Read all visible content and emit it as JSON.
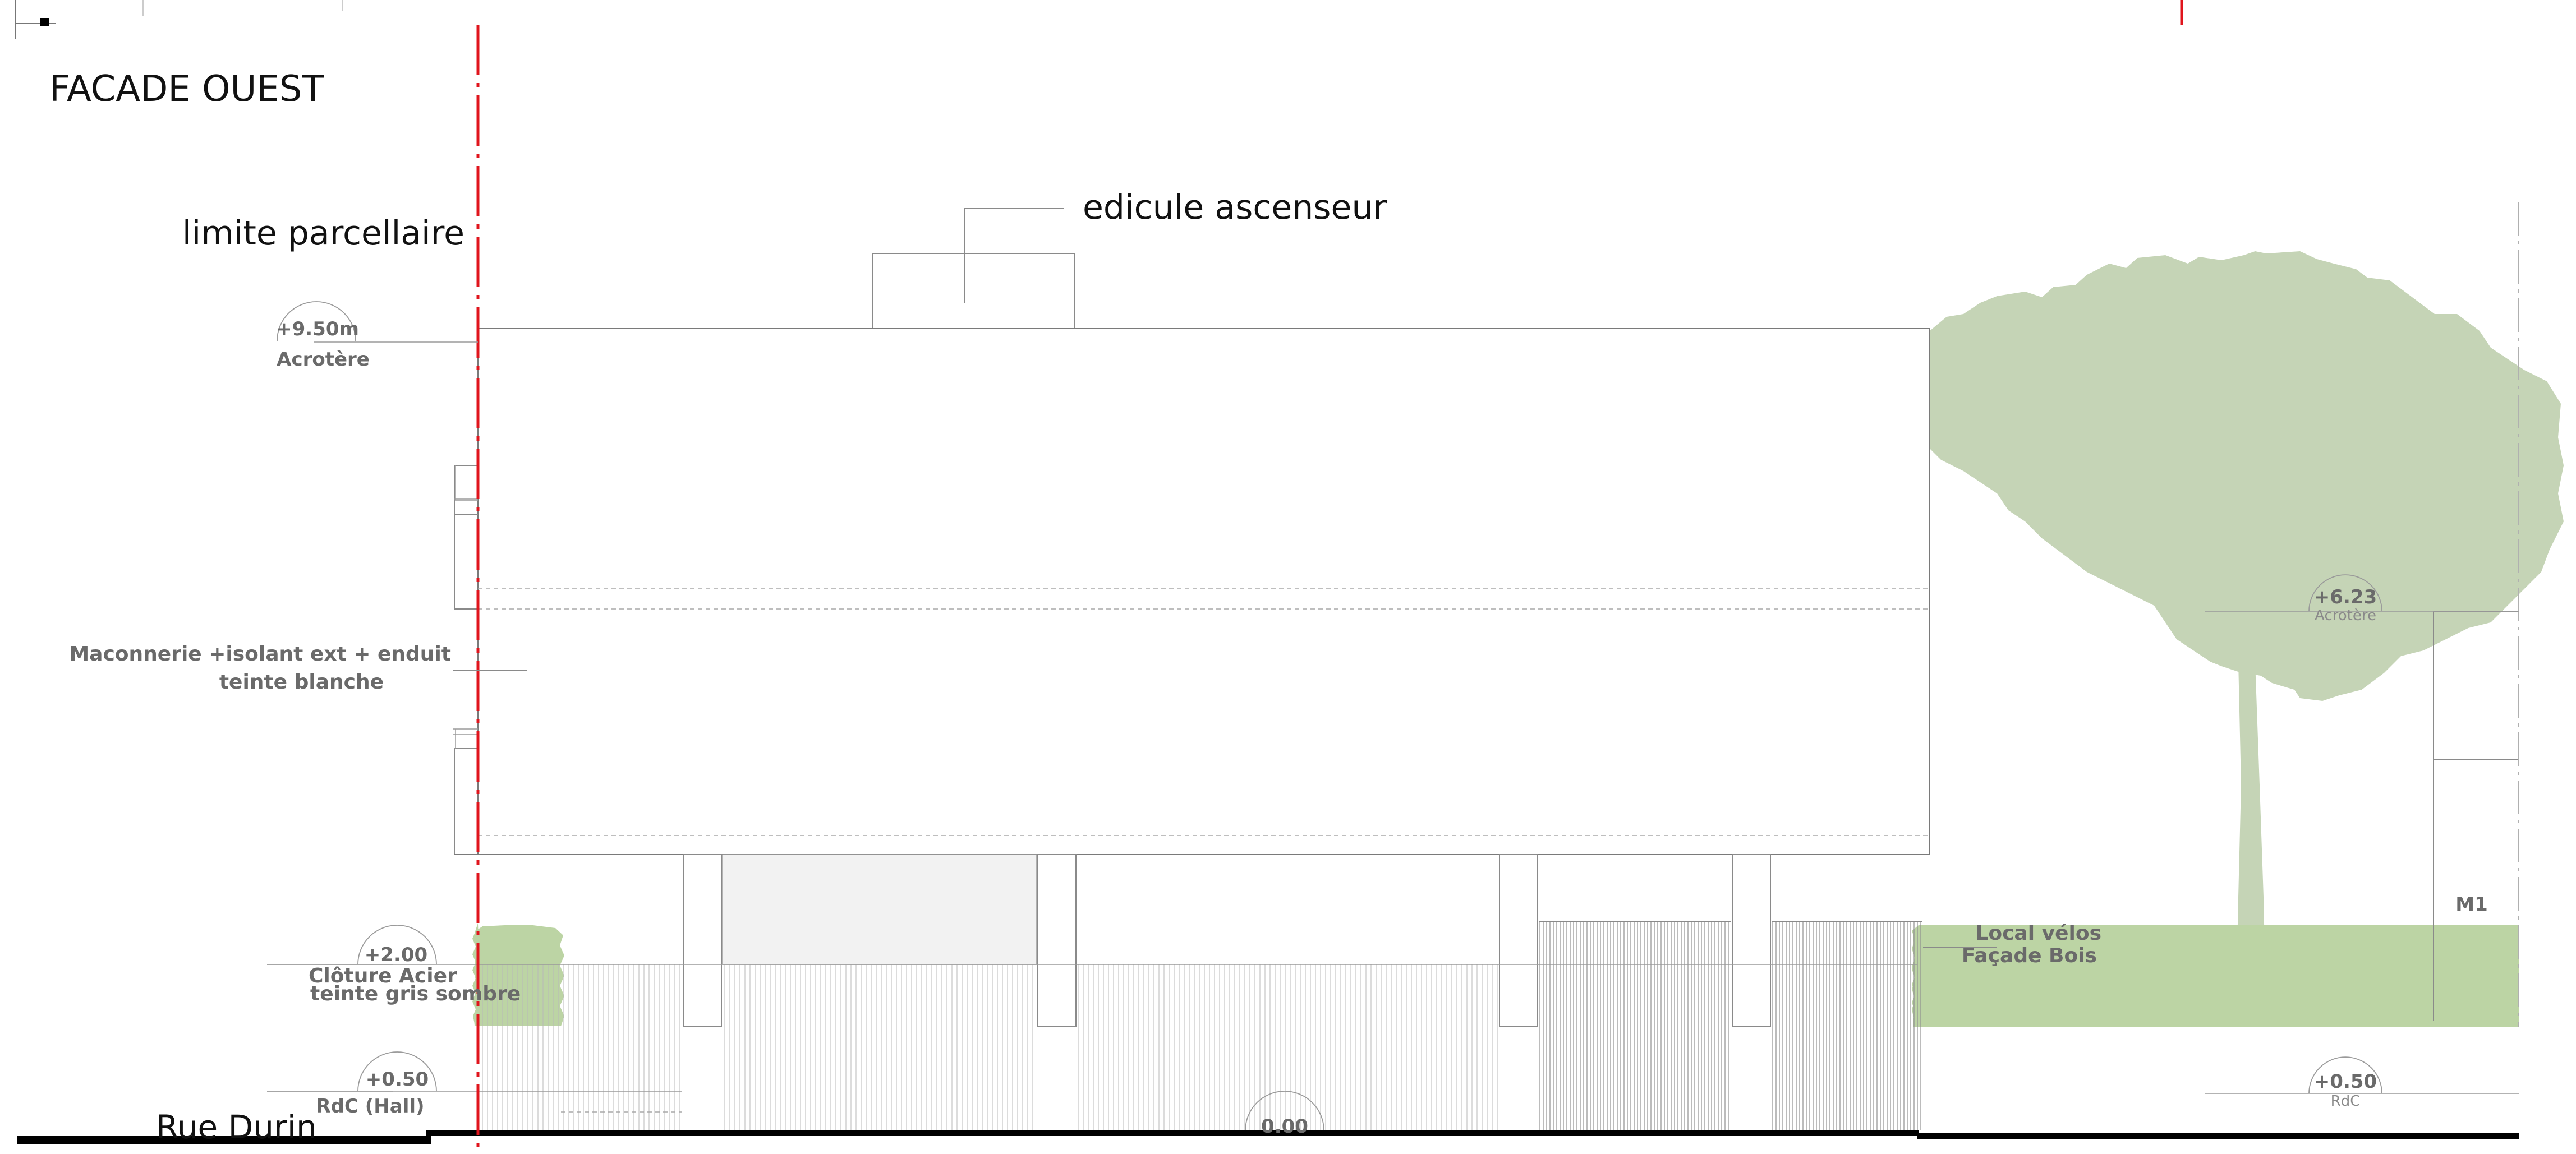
{
  "drawing": {
    "title": "FACADE OUEST",
    "street": "Rue Durin",
    "colors": {
      "property_line": "#e0141c",
      "tree": "#c5d4b6",
      "hedge": "#bcd4a4",
      "ground": "#000000",
      "lines": "#8a8a8a",
      "labels": "#6a6a6a"
    }
  },
  "annotations": {
    "property_limit": "limite parcellaire",
    "elevator_housing": "edicule ascenseur",
    "masonry_line1": "Maconnerie +isolant ext +  enduit",
    "masonry_line2": "teinte blanche",
    "fence_line1": "Clôture Acier",
    "fence_line2": "teinte gris sombre",
    "bike_line1": "Local vélos",
    "bike_line2": "Façade Bois",
    "neighbor_tag": "M1"
  },
  "levels": {
    "acrotere_main": {
      "value": "+9.50m",
      "label": "Acrotère"
    },
    "fence_top": {
      "value": "+2.00"
    },
    "rdc_hall": {
      "value": "+0.50",
      "label": "RdC (Hall)"
    },
    "ground": {
      "value": "0.00"
    },
    "acrotere_neighbor": {
      "value": "+6.23",
      "label": "Acrotère"
    },
    "rdc_neighbor": {
      "value": "+0.50",
      "label": "RdC"
    }
  }
}
